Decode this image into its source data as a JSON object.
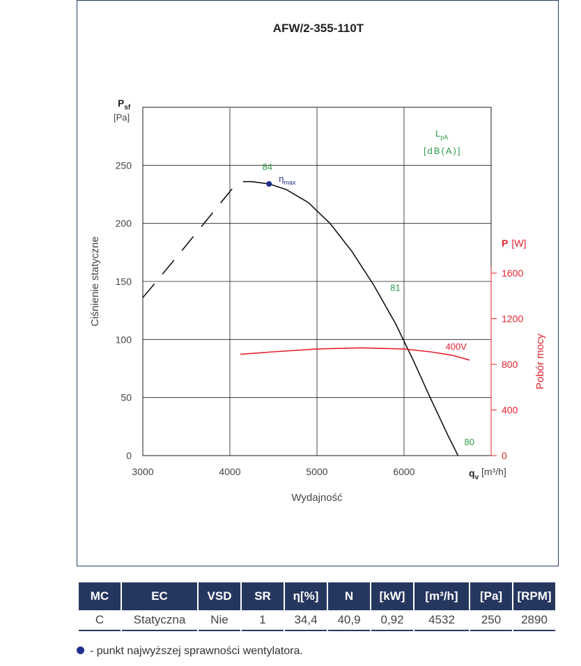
{
  "chart_data": {
    "type": "line",
    "title": "AFW/2-355-110T",
    "xlabel": "Wydajność",
    "x_unit_symbol": "q",
    "x_unit_sub": "v",
    "x_unit": "[m³/h]",
    "ylabel": "Ciśnienie statyczne",
    "y_symbol": "P",
    "y_symbol_sub": "sf",
    "y_unit": "[Pa]",
    "y2label": "Pobór mocy",
    "y2_symbol": "P",
    "y2_unit": "[W]",
    "noise_symbol": "L",
    "noise_sub": "pA",
    "noise_unit": "[dB(A)]",
    "xlim": [
      3000,
      7000
    ],
    "ylim": [
      0,
      300
    ],
    "y2lim": [
      0,
      1600
    ],
    "x_ticks": [
      "3000",
      "4000",
      "5000",
      "6000"
    ],
    "x_tick_values": [
      3000,
      4000,
      5000,
      6000
    ],
    "y_ticks": [
      "0",
      "50",
      "100",
      "150",
      "200",
      "250"
    ],
    "y_tick_values": [
      0,
      50,
      100,
      150,
      200,
      250
    ],
    "y2_ticks": [
      "0",
      "400",
      "800",
      "1200",
      "1600"
    ],
    "y2_tick_values": [
      0,
      400,
      800,
      1200,
      1600
    ],
    "grid": true,
    "series": [
      {
        "name": "",
        "axis": "left",
        "style": "solid",
        "color": "#111111",
        "x": [
          4150,
          4250,
          4450,
          4650,
          4900,
          5150,
          5400,
          5650,
          5900,
          6100,
          6300,
          6500,
          6620
        ],
        "y": [
          236,
          236,
          234,
          229,
          218,
          200,
          176,
          147,
          114,
          83,
          50,
          18,
          0
        ]
      },
      {
        "name": "",
        "axis": "left",
        "style": "dashed",
        "color": "#111111",
        "x": [
          3000,
          3400,
          3800,
          4050
        ],
        "y": [
          136,
          172,
          209,
          232
        ]
      },
      {
        "name": "400V",
        "axis": "right",
        "style": "solid",
        "color": "#e3212d",
        "x": [
          4120,
          4500,
          5000,
          5500,
          6000,
          6300,
          6550,
          6750
        ],
        "y": [
          888,
          910,
          935,
          945,
          935,
          910,
          880,
          838
        ]
      }
    ],
    "eta_max_point": {
      "x": 4450,
      "y": 234,
      "label": "η",
      "label_sub": "max",
      "color": "#1f2e8f"
    },
    "noise_labels": [
      {
        "value": "84",
        "x": 4430,
        "y": 246
      },
      {
        "value": "81",
        "x": 5900,
        "y": 142
      },
      {
        "value": "80",
        "x": 6750,
        "y": 9
      }
    ],
    "colors": {
      "grid": "#1a1a1a",
      "text": "#444444",
      "noise": "#2e9a47",
      "power": "#e3212d",
      "frame": "#1f3a68"
    }
  },
  "table": {
    "headers": [
      "MC",
      "EC",
      "VSD",
      "SR",
      "η[%]",
      "N",
      "[kW]",
      "[m³/h]",
      "[Pa]",
      "[RPM]"
    ],
    "values": [
      "C",
      "Statyczna",
      "Nie",
      "1",
      "34,4",
      "40,9",
      "0,92",
      "4532",
      "250",
      "2890"
    ]
  },
  "footnote": "- punkt najwyższej sprawności wentylatora."
}
